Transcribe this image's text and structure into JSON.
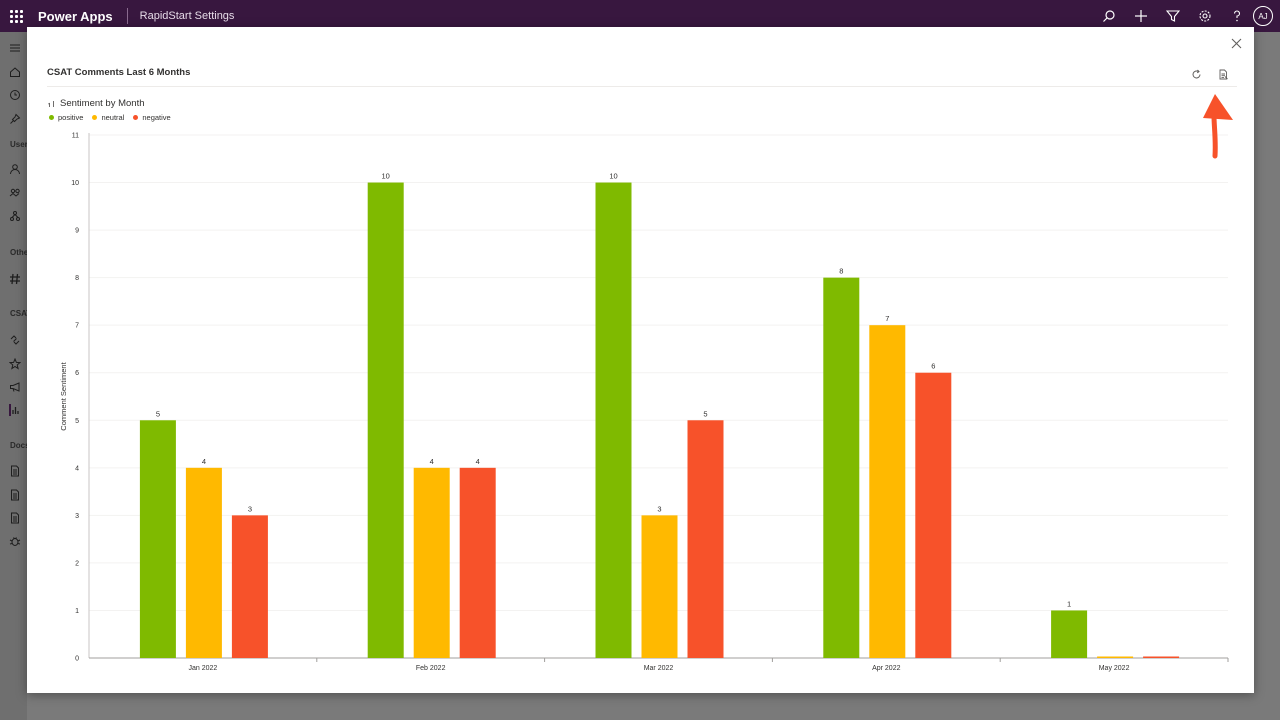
{
  "app": {
    "name": "Power Apps",
    "environment": "RapidStart Settings",
    "avatar_initials": "AJ"
  },
  "topbar_icons": [
    "search-icon",
    "plus-icon",
    "filter-icon",
    "gear-icon",
    "help-icon"
  ],
  "sidebar": {
    "sections": [
      {
        "label": "Users",
        "icons": [
          "person-icon",
          "people-icon",
          "hierarchy-icon"
        ]
      },
      {
        "label": "Other",
        "icons": [
          "hashtag-icon"
        ]
      },
      {
        "label": "CSAT",
        "icons": [
          "link-icon",
          "star-icon",
          "megaphone-icon",
          "chart-icon"
        ]
      },
      {
        "label": "Docs",
        "icons": [
          "document-icon",
          "document-icon",
          "document-icon",
          "bug-icon"
        ]
      }
    ],
    "top_icons": [
      "hamburger-icon",
      "home-icon",
      "clock-icon",
      "pin-icon"
    ]
  },
  "dialog": {
    "title": "CSAT Comments Last 6 Months",
    "chart_title": "Sentiment by Month",
    "header_actions": [
      "refresh-icon",
      "export-icon"
    ]
  },
  "colors": {
    "positive": "#7fba00",
    "neutral": "#ffb900",
    "negative": "#f7522a",
    "annotation": "#f7522a"
  },
  "chart_data": {
    "type": "bar",
    "title": "Sentiment by Month",
    "xlabel": "",
    "ylabel": "Comment Sentiment",
    "ylim": [
      0,
      11
    ],
    "yticks": [
      0,
      1,
      2,
      3,
      4,
      5,
      6,
      7,
      8,
      9,
      10,
      11
    ],
    "categories": [
      "Jan 2022",
      "Feb 2022",
      "Mar 2022",
      "Apr 2022",
      "May 2022"
    ],
    "series": [
      {
        "name": "positive",
        "values": [
          5,
          10,
          10,
          8,
          1
        ]
      },
      {
        "name": "neutral",
        "values": [
          4,
          4,
          3,
          7,
          0
        ]
      },
      {
        "name": "negative",
        "values": [
          3,
          4,
          5,
          6,
          0
        ]
      }
    ],
    "legend": "top-left",
    "grid": true
  }
}
